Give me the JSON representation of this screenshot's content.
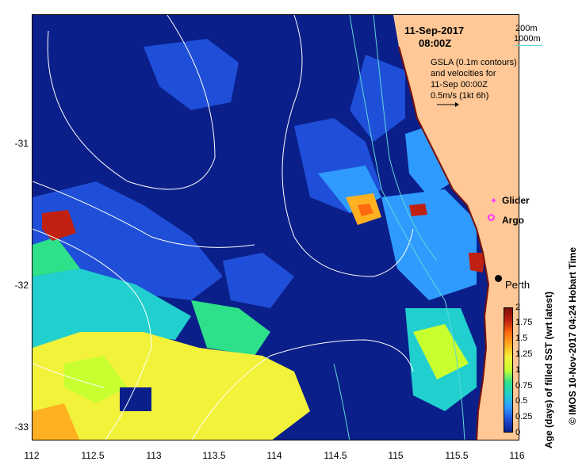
{
  "header": {
    "date": "11-Sep-2017",
    "time": "08:00Z"
  },
  "contour_legend": {
    "label_200": "200m",
    "label_1000": "1000m",
    "color_1000": "#5fd6d6"
  },
  "gsla_note": {
    "line1": "GSLA (0.1m contours)",
    "line2": "and velocities for",
    "line3": "11-Sep 00:00Z",
    "line4": "0.5m/s (1kt 6h)"
  },
  "markers": {
    "glider": "Glider",
    "argo": "Argo",
    "city": "Perth",
    "glider_color": "#ff33ff",
    "argo_color": "#ff33ff"
  },
  "axes": {
    "x_ticks": [
      "112",
      "112.5",
      "113",
      "113.5",
      "114",
      "114.5",
      "115",
      "115.5",
      "116"
    ],
    "y_ticks": [
      "-31",
      "-32",
      "-33"
    ]
  },
  "colorbar": {
    "title": "Age (days) of filled SST (wrt latest)",
    "ticks": [
      "2",
      "1.75",
      "1.5",
      "1.25",
      "1",
      "0.75",
      "0.5",
      "0.25",
      "0"
    ],
    "colors": [
      "#0a1f8a",
      "#1f4fd8",
      "#2f9bff",
      "#22cfcf",
      "#2fe08a",
      "#c8ff2f",
      "#f2f23a",
      "#ffb020",
      "#ff6a10",
      "#c02010",
      "#7a1008"
    ]
  },
  "credit": "© IMOS 10-Nov-2017 04:24 Hobart Time",
  "land_color": "#ffc896",
  "ocean_color": "#0a1f8a"
}
